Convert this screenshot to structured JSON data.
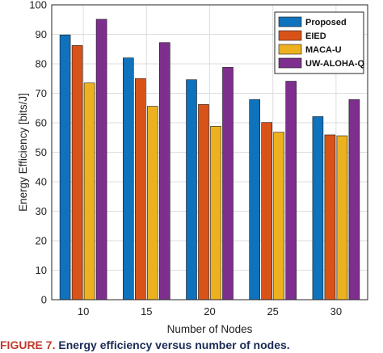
{
  "chart_data": {
    "type": "bar",
    "categories": [
      "10",
      "15",
      "20",
      "25",
      "30"
    ],
    "series": [
      {
        "name": "Proposed",
        "values": [
          89.8,
          82.0,
          74.6,
          67.9,
          62.1
        ],
        "color": "#0f72bd"
      },
      {
        "name": "EIED",
        "values": [
          86.2,
          75.0,
          66.2,
          60.1,
          55.9
        ],
        "color": "#d95319"
      },
      {
        "name": "MACA-U",
        "values": [
          73.5,
          65.6,
          58.8,
          56.8,
          55.6
        ],
        "color": "#edb120"
      },
      {
        "name": "UW-ALOHA-Q",
        "values": [
          95.1,
          87.2,
          78.8,
          74.1,
          67.9
        ],
        "color": "#7e2f8e"
      }
    ],
    "xlabel": "Number of Nodes",
    "ylabel": "Energy Efficiency [bits/J]",
    "ylim": [
      0,
      100
    ],
    "yticks": [
      0,
      10,
      20,
      30,
      40,
      50,
      60,
      70,
      80,
      90,
      100
    ],
    "grid": true,
    "legend": "top-right"
  },
  "caption": {
    "figure_label": "FIGURE 7.",
    "text": "Energy efficiency versus number of nodes."
  }
}
